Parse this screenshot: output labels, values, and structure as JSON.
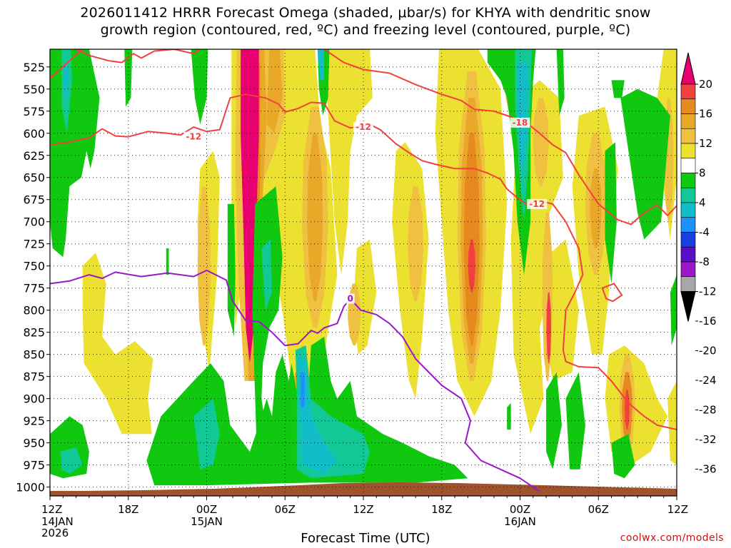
{
  "title_line1": "2026011412 HRRR Forecast Omega (shaded, μbar/s) for KHYA with dendritic snow",
  "title_line2": "growth region (contoured, red, ºC) and freezing level (contoured, purple, ºC)",
  "xaxis_title": "Forecast Time (UTC)",
  "credit": "coolwx.com/models",
  "colors": {
    "strong_ascent": "#e8006e",
    "red": "#f04040",
    "dark_orange": "#e68a1f",
    "orange": "#eaa828",
    "light_orange": "#f0c040",
    "yellow": "#ece030",
    "green": "#0fc80f",
    "teal_green": "#12c896",
    "cyan": "#12bcc8",
    "terrain": "#a0522d",
    "dgz_contour": "#f04040",
    "freezing_contour": "#9a18c8"
  },
  "chart_data": {
    "type": "time-height cross section",
    "x_start_hour": 0,
    "x_end_hour": 48,
    "x_ticks": [
      {
        "hour": 0,
        "label": "12Z",
        "sub": [
          "14JAN",
          "2026"
        ]
      },
      {
        "hour": 6,
        "label": "18Z",
        "sub": []
      },
      {
        "hour": 12,
        "label": "00Z",
        "sub": [
          "15JAN"
        ]
      },
      {
        "hour": 18,
        "label": "06Z",
        "sub": []
      },
      {
        "hour": 24,
        "label": "12Z",
        "sub": []
      },
      {
        "hour": 30,
        "label": "18Z",
        "sub": []
      },
      {
        "hour": 36,
        "label": "00Z",
        "sub": [
          "16JAN"
        ]
      },
      {
        "hour": 42,
        "label": "06Z",
        "sub": []
      },
      {
        "hour": 48,
        "label": "12Z",
        "sub": []
      }
    ],
    "y_levels": [
      "525",
      "550",
      "575",
      "600",
      "625",
      "650",
      "675",
      "700",
      "725",
      "750",
      "775",
      "800",
      "825",
      "850",
      "875",
      "900",
      "925",
      "950",
      "975",
      "1000"
    ],
    "ylim_hpa": [
      505,
      1010
    ],
    "colorbar": {
      "labels": [
        "20",
        "16",
        "12",
        "8",
        "4",
        "-4",
        "-8",
        "-12",
        "-16",
        "-20",
        "-24",
        "-28",
        "-32",
        "-36"
      ],
      "colors": [
        "#e8006e",
        "#f04040",
        "#e68a1f",
        "#eaa828",
        "#f0c040",
        "#ece030",
        "#ffffff",
        "#0fc80f",
        "#12c896",
        "#12bcc8",
        "#1e90ff",
        "#1a3fe0",
        "#5a10c8",
        "#9a18c8",
        "#a8a8a8",
        "#000000"
      ]
    },
    "omega_features": [
      {
        "name": "strong ascent core",
        "hour": 15.3,
        "p_top": 505,
        "p_bot": 880,
        "half_width_h": 0.7,
        "color_key": "strong_ascent"
      },
      {
        "name": "ascent band",
        "hour": 16.5,
        "p_top": 505,
        "p_bot": 780,
        "half_width_h": 1.3,
        "color_key": "orange"
      },
      {
        "name": "ascent column",
        "hour": 20.3,
        "p_top": 570,
        "p_bot": 820,
        "half_width_h": 1.0,
        "color_key": "orange"
      },
      {
        "name": "ascent column",
        "hour": 32.3,
        "p_top": 530,
        "p_bot": 880,
        "half_width_h": 1.1,
        "color_key": "dark_orange"
      },
      {
        "name": "ascent column",
        "hour": 32.5,
        "p_top": 730,
        "p_bot": 770,
        "half_width_h": 0.3,
        "color_key": "red"
      },
      {
        "name": "ascent column",
        "hour": 41.8,
        "p_top": 590,
        "p_bot": 760,
        "half_width_h": 0.8,
        "color_key": "orange"
      },
      {
        "name": "lower ascent",
        "hour": 44.2,
        "p_top": 860,
        "p_bot": 960,
        "half_width_h": 0.5,
        "color_key": "dark_orange"
      },
      {
        "name": "descent column",
        "hour": 1.3,
        "p_top": 505,
        "p_bot": 740,
        "half_width_h": 1.2,
        "color_key": "green"
      },
      {
        "name": "descent column",
        "hour": 36.3,
        "p_top": 505,
        "p_bot": 760,
        "half_width_h": 0.8,
        "color_key": "cyan"
      },
      {
        "name": "low-level descent",
        "hour": 20.5,
        "p_top": 850,
        "p_bot": 985,
        "half_width_h": 1.3,
        "color_key": "teal_green"
      }
    ],
    "dgz_contours": [
      {
        "value": "-12",
        "label_hour": 11.0,
        "label_p": 604
      },
      {
        "value": "-12",
        "label_hour": 24.0,
        "label_p": 593
      },
      {
        "value": "-12",
        "label_hour": 37.3,
        "label_p": 680
      },
      {
        "value": "-18",
        "label_hour": 36.0,
        "label_p": 588
      }
    ],
    "freezing_level": {
      "value": "0",
      "label_hour": 23.0,
      "label_p": 787
    }
  }
}
